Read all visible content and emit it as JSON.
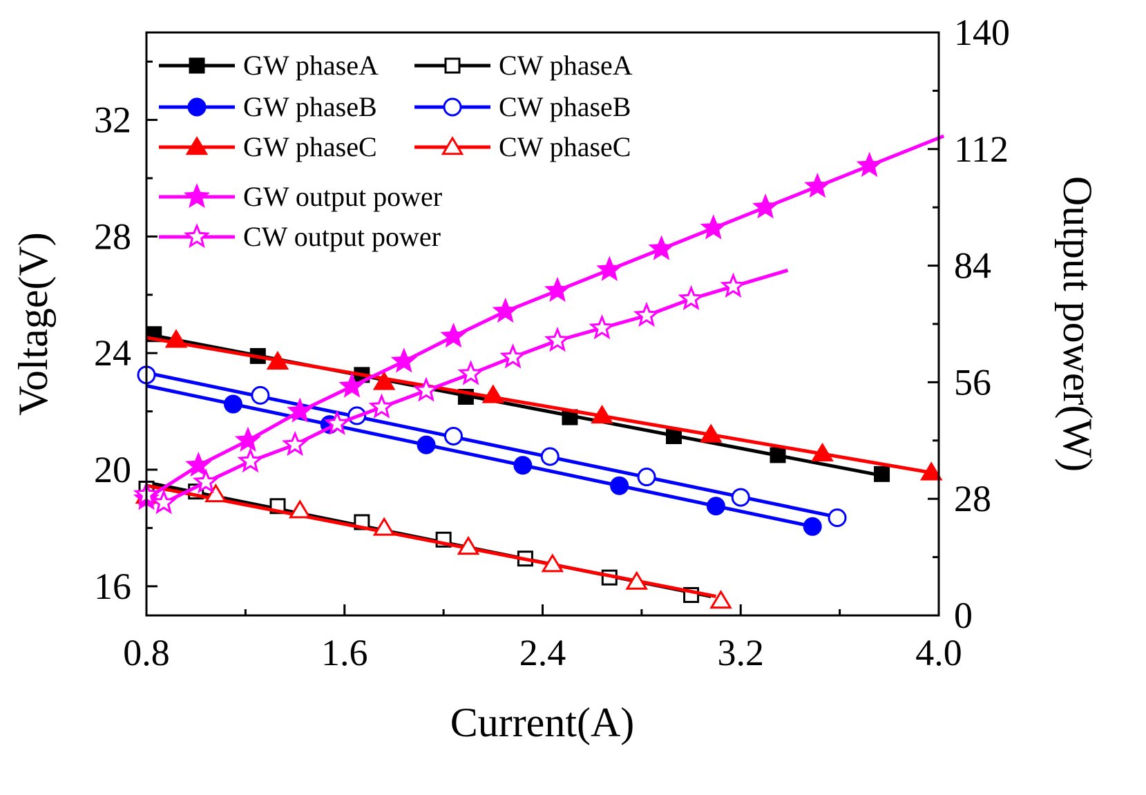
{
  "chart_data": {
    "type": "line",
    "xlabel": "Current(A)",
    "ylabel": "Voltage(V)",
    "y2label": "Output power(W)",
    "xlim": [
      0.8,
      4.0
    ],
    "ylim": [
      15,
      35
    ],
    "y2lim": [
      0,
      140
    ],
    "x_ticks": [
      "0.8",
      "1.6",
      "2.4",
      "3.2",
      "4.0"
    ],
    "y_ticks": [
      "16",
      "20",
      "24",
      "28",
      "32"
    ],
    "y2_ticks": [
      "0",
      "28",
      "56",
      "84",
      "112",
      "140"
    ],
    "grid": false,
    "legend_position": "top-left",
    "series": [
      {
        "name": "GW phaseA",
        "axis": "left",
        "color": "#000000",
        "marker": "square-filled",
        "x": [
          0.83,
          1.25,
          1.67,
          2.09,
          2.51,
          2.93,
          3.35,
          3.77
        ],
        "y": [
          24.65,
          23.9,
          23.25,
          22.5,
          21.8,
          21.15,
          20.5,
          19.85
        ]
      },
      {
        "name": "GW phaseB",
        "axis": "left",
        "color": "#0000ff",
        "marker": "circle-filled",
        "x": [
          1.15,
          1.54,
          1.93,
          2.32,
          2.71,
          3.1,
          3.49
        ],
        "y": [
          22.25,
          21.55,
          20.85,
          20.15,
          19.45,
          18.75,
          18.05
        ]
      },
      {
        "name": "GW phaseC",
        "axis": "left",
        "color": "#ff0000",
        "marker": "triangle-filled",
        "x": [
          0.92,
          1.33,
          1.76,
          2.2,
          2.64,
          3.08,
          3.53,
          3.97
        ],
        "y": [
          24.45,
          23.7,
          23.0,
          22.55,
          21.85,
          21.2,
          20.55,
          19.9
        ]
      },
      {
        "name": "CW phaseA",
        "axis": "left",
        "color": "#000000",
        "marker": "square-open",
        "x": [
          0.8,
          1.0,
          1.33,
          1.67,
          2.0,
          2.33,
          2.67,
          3.0
        ],
        "y": [
          19.35,
          19.25,
          18.75,
          18.2,
          17.6,
          16.95,
          16.3,
          15.7
        ]
      },
      {
        "name": "CW phaseB",
        "axis": "left",
        "color": "#0000ff",
        "marker": "circle-open",
        "x": [
          0.8,
          1.26,
          1.65,
          2.04,
          2.43,
          2.82,
          3.2,
          3.59
        ],
        "y": [
          23.25,
          22.55,
          21.85,
          21.15,
          20.45,
          19.75,
          19.05,
          18.35
        ]
      },
      {
        "name": "CW phaseC",
        "axis": "left",
        "color": "#ff0000",
        "marker": "triangle-open",
        "x": [
          0.8,
          1.08,
          1.42,
          1.76,
          2.1,
          2.44,
          2.78,
          3.12
        ],
        "y": [
          19.1,
          19.15,
          18.6,
          18.0,
          17.35,
          16.75,
          16.15,
          15.5
        ]
      },
      {
        "name": "GW output power",
        "axis": "right",
        "color": "#ff00ff",
        "marker": "star-filled",
        "x": [
          0.8,
          1.01,
          1.21,
          1.42,
          1.63,
          1.84,
          2.04,
          2.25,
          2.46,
          2.67,
          2.88,
          3.09,
          3.3,
          3.51,
          3.72
        ],
        "y": [
          28,
          36,
          42,
          49,
          55,
          61,
          67,
          73,
          78,
          83,
          88,
          93,
          98,
          103,
          108
        ]
      },
      {
        "name": "CW output power",
        "axis": "right",
        "color": "#ff00ff",
        "marker": "star-open",
        "x": [
          0.8,
          0.87,
          1.04,
          1.22,
          1.4,
          1.57,
          1.75,
          1.93,
          2.11,
          2.28,
          2.46,
          2.64,
          2.82,
          3.0,
          3.17
        ],
        "y": [
          29,
          27,
          32,
          37,
          41,
          46,
          50,
          54,
          58,
          62,
          66,
          69,
          72,
          76,
          79
        ]
      }
    ]
  }
}
